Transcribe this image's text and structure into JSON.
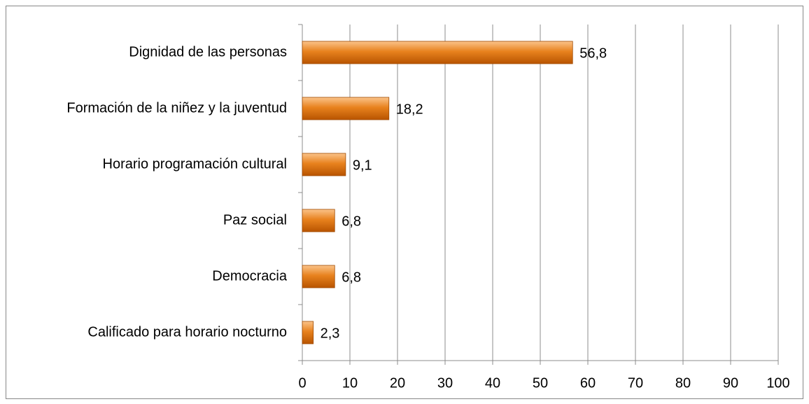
{
  "chart_data": {
    "type": "bar",
    "orientation": "horizontal",
    "categories": [
      "Dignidad de las personas",
      "Formación de la niñez y la juventud",
      "Horario programación cultural",
      "Paz social",
      "Democracia",
      "Calificado para horario nocturno"
    ],
    "values": [
      56.8,
      18.2,
      9.1,
      6.8,
      6.8,
      2.3
    ],
    "value_labels": [
      "56,8",
      "18,2",
      "9,1",
      "6,8",
      "6,8",
      "2,3"
    ],
    "color": "#e8821e",
    "xlim": [
      0,
      100
    ],
    "xticks": [
      0,
      10,
      20,
      30,
      40,
      50,
      60,
      70,
      80,
      90,
      100
    ],
    "grid": true
  }
}
